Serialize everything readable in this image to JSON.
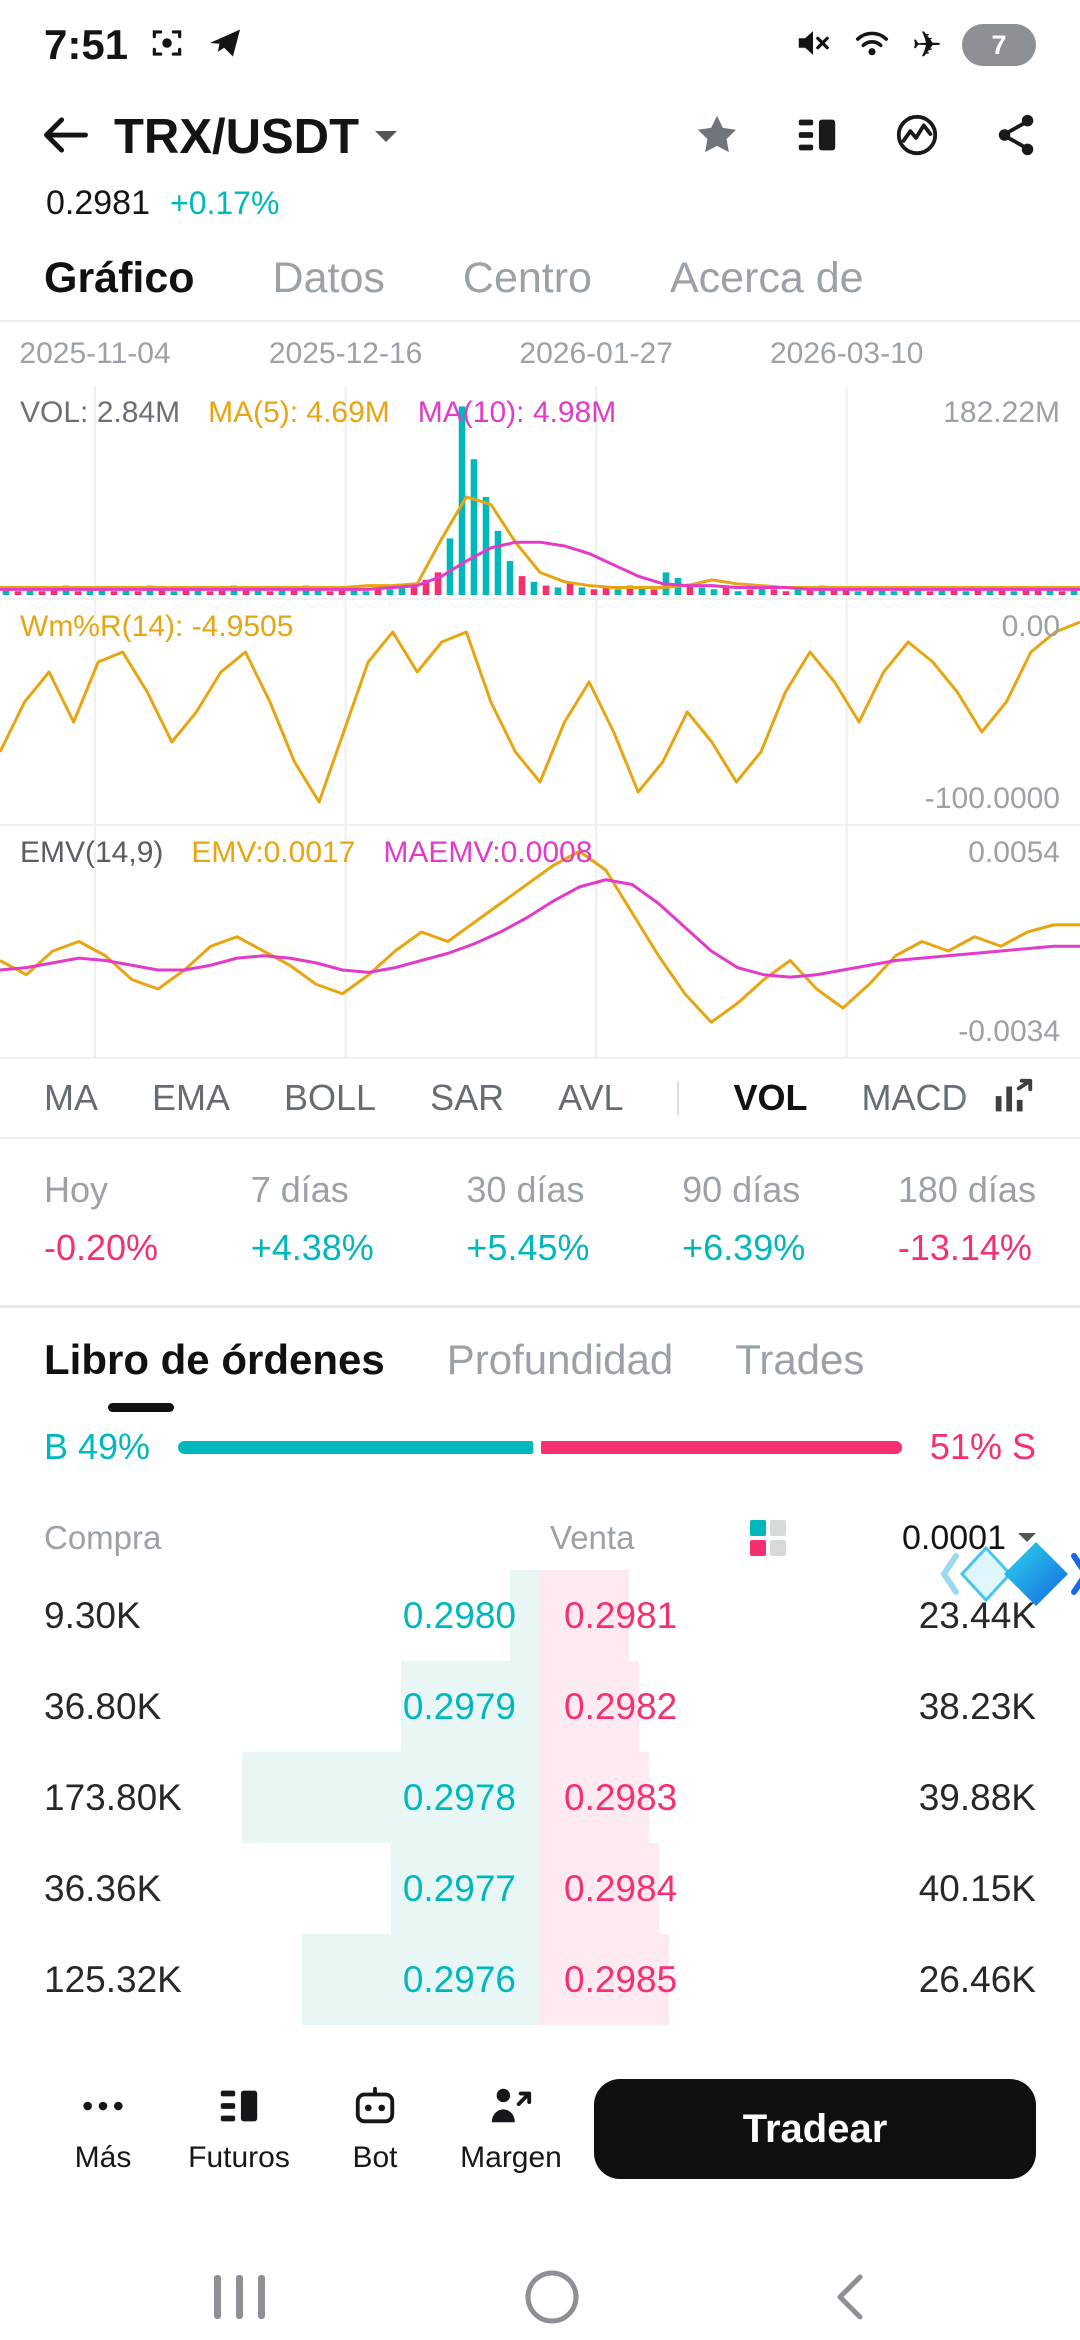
{
  "colors": {
    "up": "#00b8bc",
    "down": "#f5306e",
    "yellow": "#e7a511",
    "magenta": "#e23bc8",
    "grid": "#efefef",
    "muted": "#9aa1a8"
  },
  "status_bar": {
    "time": "7:51",
    "battery": "7"
  },
  "header": {
    "pair": "TRX/USDT",
    "price": "0.2981",
    "change": "+0.17%"
  },
  "nav_tabs": [
    {
      "label": "Gráfico",
      "active": true
    },
    {
      "label": "Datos"
    },
    {
      "label": "Centro"
    },
    {
      "label": "Acerca de"
    }
  ],
  "chart": {
    "dates": [
      "2025-11-04",
      "2025-12-16",
      "2026-01-27",
      "2026-03-10"
    ],
    "grid_x": [
      0.088,
      0.32,
      0.552,
      0.784
    ],
    "vol": {
      "legend_vol": "VOL: 2.84M",
      "legend_ma5": "MA(5): 4.69M",
      "legend_ma10": "MA(10): 4.98M",
      "max_label": "182.22M",
      "bars": [
        3,
        2,
        4,
        2,
        3,
        5,
        2,
        3,
        4,
        2,
        3,
        2,
        5,
        3,
        2,
        4,
        3,
        2,
        3,
        5,
        4,
        3,
        2,
        4,
        3,
        5,
        3,
        2,
        4,
        3,
        2,
        4,
        3,
        5,
        6,
        8,
        12,
        30,
        100,
        72,
        52,
        34,
        18,
        10,
        7,
        5,
        4,
        6,
        4,
        3,
        4,
        3,
        5,
        4,
        3,
        12,
        9,
        6,
        4,
        3,
        4,
        2,
        3,
        4,
        3,
        2,
        4,
        3,
        5,
        4,
        3,
        2,
        4,
        3,
        2,
        3,
        4,
        2,
        3,
        4,
        2,
        3,
        4,
        3,
        2,
        3,
        4,
        3,
        2,
        3
      ],
      "bar_colors": "ududduduudududududdudududuudduuduudddu uuuuududududdududuuduudududdududduduududududududdududu",
      "ma5": [
        4,
        4,
        4,
        4,
        4,
        4,
        4,
        4,
        4,
        4,
        4,
        4,
        4,
        4,
        4,
        5,
        5,
        6,
        30,
        52,
        48,
        28,
        12,
        7,
        5,
        4,
        4,
        4,
        5,
        8,
        6,
        5,
        4,
        4,
        4,
        4,
        4,
        4,
        4,
        4,
        4,
        4,
        4,
        4,
        4
      ],
      "ma10": [
        3,
        3,
        3,
        3,
        3,
        3,
        3,
        3,
        3,
        3,
        3,
        3,
        3,
        3,
        3,
        3,
        4,
        5,
        10,
        18,
        25,
        28,
        28,
        26,
        22,
        16,
        10,
        6,
        5,
        5,
        4,
        4,
        4,
        3,
        3,
        3,
        3,
        3,
        3,
        3,
        3,
        3,
        3,
        3,
        3
      ]
    },
    "wr": {
      "legend": "Wm%R(14): -4.9505",
      "top_label": "0.00",
      "bottom_label": "-100.0000",
      "values": [
        -70,
        -45,
        -30,
        -55,
        -25,
        -20,
        -40,
        -65,
        -50,
        -30,
        -20,
        -45,
        -75,
        -95,
        -60,
        -25,
        -10,
        -30,
        -15,
        -10,
        -45,
        -70,
        -85,
        -55,
        -35,
        -60,
        -90,
        -75,
        -50,
        -65,
        -85,
        -70,
        -40,
        -20,
        -35,
        -55,
        -30,
        -15,
        -25,
        -40,
        -60,
        -45,
        -20,
        -10,
        -5
      ]
    },
    "emv": {
      "legend_name": "EMV(14,9)",
      "legend_emv": "EMV:0.0017",
      "legend_maemv": "MAEMV:0.0008",
      "top_label": "0.0054",
      "bottom_label": "-0.0034",
      "range": [
        0.0054,
        -0.0034
      ],
      "emv": [
        0.0002,
        -0.0004,
        0.0006,
        0.001,
        0.0004,
        -0.0006,
        -0.001,
        -0.0002,
        0.0008,
        0.0012,
        0.0006,
        0.0,
        -0.0008,
        -0.0012,
        -0.0004,
        0.0006,
        0.0014,
        0.001,
        0.0018,
        0.0026,
        0.0034,
        0.0042,
        0.0048,
        0.004,
        0.0022,
        0.0004,
        -0.0012,
        -0.0024,
        -0.0016,
        -0.0006,
        0.0002,
        -0.001,
        -0.0018,
        -0.0008,
        0.0004,
        0.001,
        0.0006,
        0.0012,
        0.0008,
        0.0014,
        0.0017,
        0.0017
      ],
      "maemv": [
        -0.0002,
        -0.0001,
        0.0001,
        0.0003,
        0.0002,
        0.0,
        -0.0002,
        -0.0002,
        0.0,
        0.0003,
        0.0004,
        0.0003,
        0.0001,
        -0.0002,
        -0.0003,
        -0.0001,
        0.0002,
        0.0005,
        0.0009,
        0.0014,
        0.002,
        0.0027,
        0.0033,
        0.0036,
        0.0034,
        0.0026,
        0.0016,
        0.0006,
        -0.0001,
        -0.0004,
        -0.0005,
        -0.0004,
        -0.0002,
        0.0,
        0.0002,
        0.0003,
        0.0004,
        0.0005,
        0.0006,
        0.0007,
        0.0008,
        0.0008
      ]
    }
  },
  "indicator_tabs": [
    {
      "label": "MA"
    },
    {
      "label": "EMA"
    },
    {
      "label": "BOLL"
    },
    {
      "label": "SAR"
    },
    {
      "label": "AVL"
    },
    {
      "label": "VOL",
      "active": true
    },
    {
      "label": "MACD"
    },
    {
      "label": "K"
    }
  ],
  "performance": [
    {
      "label": "Hoy",
      "value": "-0.20%",
      "dir": "down"
    },
    {
      "label": "7 días",
      "value": "+4.38%",
      "dir": "up"
    },
    {
      "label": "30 días",
      "value": "+5.45%",
      "dir": "up"
    },
    {
      "label": "90 días",
      "value": "+6.39%",
      "dir": "up"
    },
    {
      "label": "180 días",
      "value": "-13.14%",
      "dir": "down"
    }
  ],
  "orderbook": {
    "tabs": [
      {
        "label": "Libro de órdenes",
        "active": true
      },
      {
        "label": "Profundidad"
      },
      {
        "label": "Trades"
      }
    ],
    "buy_pct_label": "B 49%",
    "sell_pct_label": "51% S",
    "buy_pct": 49,
    "sell_pct": 51,
    "col_buy": "Compra",
    "col_sell": "Venta",
    "tick": "0.0001",
    "rows": [
      {
        "buy_amount": "9.30K",
        "buy_price": "0.2980",
        "sell_price": "0.2981",
        "sell_amount": "23.44K",
        "buy_depth": 6,
        "sell_depth": 18
      },
      {
        "buy_amount": "36.80K",
        "buy_price": "0.2979",
        "sell_price": "0.2982",
        "sell_amount": "38.23K",
        "buy_depth": 28,
        "sell_depth": 20
      },
      {
        "buy_amount": "173.80K",
        "buy_price": "0.2978",
        "sell_price": "0.2983",
        "sell_amount": "39.88K",
        "buy_depth": 60,
        "sell_depth": 22
      },
      {
        "buy_amount": "36.36K",
        "buy_price": "0.2977",
        "sell_price": "0.2984",
        "sell_amount": "40.15K",
        "buy_depth": 30,
        "sell_depth": 24
      },
      {
        "buy_amount": "125.32K",
        "buy_price": "0.2976",
        "sell_price": "0.2985",
        "sell_amount": "26.46K",
        "buy_depth": 48,
        "sell_depth": 26
      }
    ]
  },
  "bottom_bar": {
    "items": [
      {
        "label": "Más"
      },
      {
        "label": "Futuros"
      },
      {
        "label": "Bot"
      },
      {
        "label": "Margen"
      }
    ],
    "trade_button": "Tradear"
  }
}
